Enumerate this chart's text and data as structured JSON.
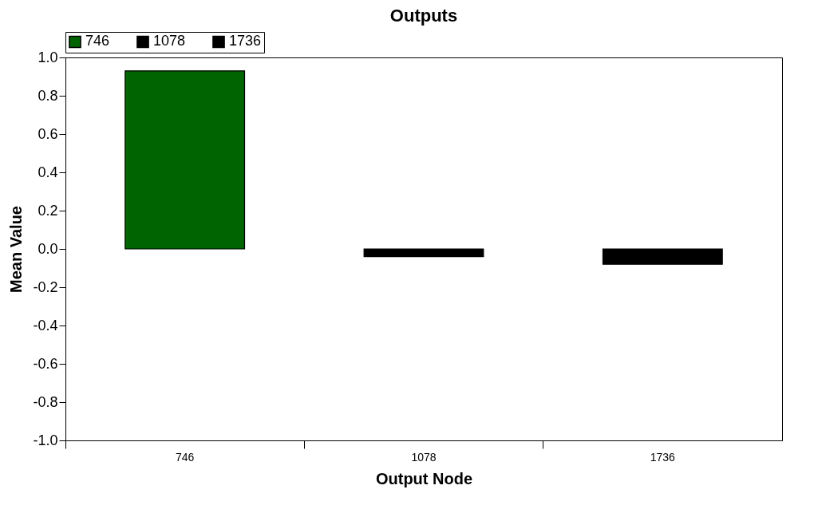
{
  "chart_data": {
    "type": "bar",
    "title": "Outputs",
    "xlabel": "Output Node",
    "ylabel": "Mean Value",
    "categories": [
      "746",
      "1078",
      "1736"
    ],
    "series": [
      {
        "name": "746",
        "color": "#006400",
        "values": [
          0.93,
          null,
          null
        ]
      },
      {
        "name": "1078",
        "color": "#000000",
        "values": [
          null,
          -0.04,
          null
        ]
      },
      {
        "name": "1736",
        "color": "#000000",
        "values": [
          null,
          null,
          -0.08
        ]
      }
    ],
    "ylim": [
      -1.0,
      1.0
    ],
    "yticks": [
      {
        "value": -1,
        "label": "-1.0"
      },
      {
        "value": -0.8,
        "label": "-0.8"
      },
      {
        "value": -0.6,
        "label": "-0.6"
      },
      {
        "value": -0.4,
        "label": "-0.4"
      },
      {
        "value": -0.2,
        "label": "-0.2"
      },
      {
        "value": 0,
        "label": "0.0"
      },
      {
        "value": 0.2,
        "label": "0.2"
      },
      {
        "value": 0.4,
        "label": "0.4"
      },
      {
        "value": 0.6,
        "label": "0.6"
      },
      {
        "value": 0.8,
        "label": "0.8"
      },
      {
        "value": 1,
        "label": "1.0"
      }
    ],
    "grid": false,
    "legend": "top left"
  }
}
